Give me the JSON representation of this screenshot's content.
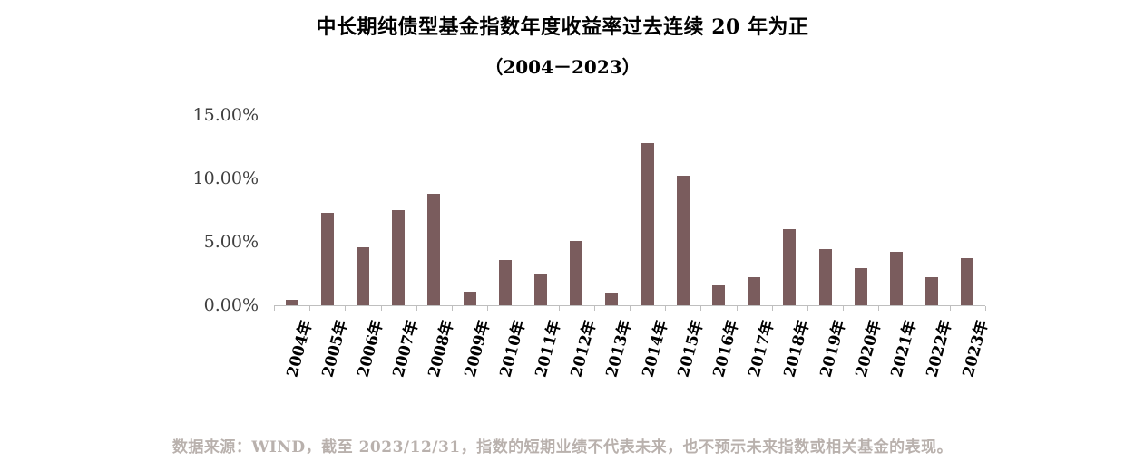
{
  "title": "中长期纯债型基金指数年度收益率过去连续 20 年为正",
  "subtitle": "（2004－2023）",
  "footer": "数据来源：WIND，截至 2023/12/31，指数的短期业绩不代表未来，也不预示未来指数或相关基金的表现。",
  "chart_data": {
    "type": "bar",
    "title": "中长期纯债型基金指数年度收益率过去连续 20 年为正（2004－2023）",
    "categories": [
      "2004年",
      "2005年",
      "2006年",
      "2007年",
      "2008年",
      "2009年",
      "2010年",
      "2011年",
      "2012年",
      "2013年",
      "2014年",
      "2015年",
      "2016年",
      "2017年",
      "2018年",
      "2019年",
      "2020年",
      "2021年",
      "2022年",
      "2023年"
    ],
    "values": [
      0.4,
      7.3,
      4.6,
      7.5,
      8.8,
      1.1,
      3.6,
      2.4,
      5.1,
      1.0,
      12.8,
      10.2,
      1.6,
      2.2,
      6.0,
      4.4,
      2.9,
      4.2,
      2.2,
      3.7
    ],
    "value_unit": "%",
    "xlabel": "",
    "ylabel": "",
    "ylim": [
      0,
      15
    ],
    "yticks": [
      "15.00%",
      "10.00%",
      "5.00%",
      "0.00%"
    ],
    "grid": false,
    "legend": false,
    "bar_color": "#7A5C5D",
    "axis_color": "#bfbfbf"
  }
}
